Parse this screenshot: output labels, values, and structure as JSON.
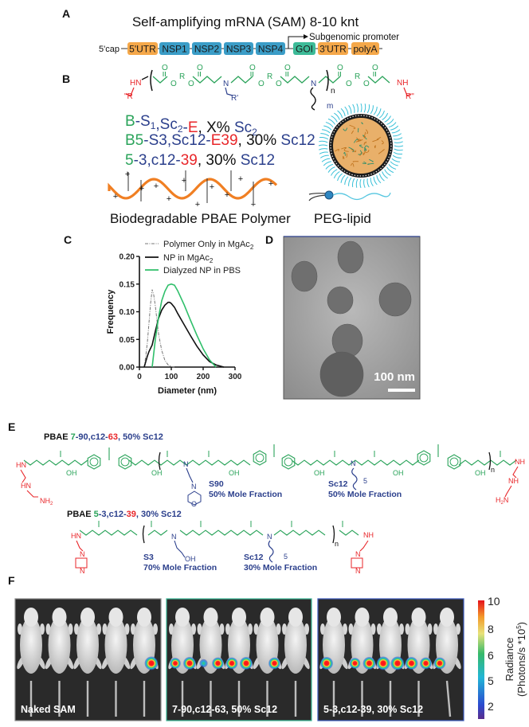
{
  "panel_labels": {
    "A": "A",
    "B": "B",
    "C": "C",
    "D": "D",
    "E": "E",
    "F": "F"
  },
  "panelA": {
    "title": "Self-amplifying mRNA (SAM) 8-10 knt",
    "cap": "5'cap",
    "promoter": "Subgenomic promoter",
    "segments": [
      {
        "label": "5'UTR",
        "color": "#f5a84a"
      },
      {
        "label": "NSP1",
        "color": "#3b9dc7"
      },
      {
        "label": "NSP2",
        "color": "#3b9dc7"
      },
      {
        "label": "NSP3",
        "color": "#3b9dc7"
      },
      {
        "label": "NSP4",
        "color": "#3b9dc7"
      },
      {
        "label": "GOI",
        "color": "#3dbb98"
      },
      {
        "label": "3'UTR",
        "color": "#f5a84a"
      },
      {
        "label": "polyA",
        "color": "#f5a84a"
      }
    ]
  },
  "panelB": {
    "atoms": {
      "hn": "HN",
      "nh": "NH",
      "n": "N",
      "o": "O",
      "r": "R",
      "r_prime": "R'",
      "r_left": "\"R",
      "r_right": "R\"",
      "n_sub": "n",
      "m_sub": "m"
    },
    "nomenclature": [
      [
        {
          "t": "B",
          "c": "#2aa35a"
        },
        {
          "t": "-",
          "c": "#2b3f8c"
        },
        {
          "t": "S",
          "c": "#2b3f8c"
        },
        {
          "t": "1",
          "c": "#2b3f8c",
          "sub": true
        },
        {
          "t": ",Sc",
          "c": "#2b3f8c"
        },
        {
          "t": "2",
          "c": "#2b3f8c",
          "sub": true
        },
        {
          "t": "-",
          "c": "#2b3f8c"
        },
        {
          "t": "E",
          "c": "#e8262a"
        },
        {
          "t": ", X% ",
          "c": "#111"
        },
        {
          "t": "Sc",
          "c": "#2b3f8c"
        },
        {
          "t": "2",
          "c": "#2b3f8c",
          "sub": true
        }
      ],
      [
        {
          "t": "B5",
          "c": "#2aa35a"
        },
        {
          "t": "-S3,Sc12-",
          "c": "#2b3f8c"
        },
        {
          "t": "E39",
          "c": "#e8262a"
        },
        {
          "t": ", 30% ",
          "c": "#111"
        },
        {
          "t": "Sc12",
          "c": "#2b3f8c"
        }
      ],
      [
        {
          "t": "5",
          "c": "#2aa35a"
        },
        {
          "t": "-3,c12-",
          "c": "#2b3f8c"
        },
        {
          "t": "39",
          "c": "#e8262a"
        },
        {
          "t": ", 30% ",
          "c": "#111"
        },
        {
          "t": "Sc12",
          "c": "#2b3f8c"
        }
      ]
    ],
    "polymer_label": "Biodegradable PBAE Polymer",
    "peg_label": "PEG-lipid",
    "charge_symbol": "+"
  },
  "panelC": {
    "chart_data": {
      "type": "line",
      "title": "",
      "xlabel": "Diameter (nm)",
      "ylabel": "Frequency",
      "xlim": [
        0,
        300
      ],
      "ylim": [
        0,
        0.2
      ],
      "xticks": [
        0,
        100,
        200,
        300
      ],
      "yticks": [
        "0.00",
        "0.05",
        "0.10",
        "0.15",
        "0.20"
      ],
      "legend_position": "top-right",
      "series": [
        {
          "name": "Polymer Only in MgAc",
          "name_sub": "2",
          "style": "dash-dot",
          "color": "#777777",
          "x": [
            15,
            20,
            25,
            30,
            35,
            40,
            45,
            50,
            55,
            60,
            70,
            80,
            90,
            100,
            110
          ],
          "y": [
            0,
            0.02,
            0.045,
            0.08,
            0.115,
            0.14,
            0.13,
            0.11,
            0.085,
            0.06,
            0.03,
            0.012,
            0.004,
            0.001,
            0
          ]
        },
        {
          "name": "NP in MgAc",
          "name_sub": "2",
          "style": "solid",
          "color": "#111111",
          "x": [
            15,
            20,
            25,
            30,
            40,
            50,
            60,
            70,
            80,
            90,
            95,
            100,
            110,
            120,
            140,
            160,
            180,
            200,
            220,
            240,
            265
          ],
          "y": [
            0,
            0.01,
            0.02,
            0.028,
            0.04,
            0.065,
            0.088,
            0.103,
            0.112,
            0.117,
            0.117,
            0.115,
            0.108,
            0.097,
            0.077,
            0.057,
            0.038,
            0.022,
            0.01,
            0.004,
            0
          ]
        },
        {
          "name": "Dialyzed NP in PBS",
          "name_sub": "",
          "style": "solid",
          "color": "#2fbf6a",
          "x": [
            40,
            50,
            60,
            70,
            80,
            90,
            100,
            110,
            120,
            140,
            160,
            180,
            200,
            220,
            240
          ],
          "y": [
            0,
            0.05,
            0.09,
            0.12,
            0.137,
            0.148,
            0.15,
            0.148,
            0.138,
            0.113,
            0.085,
            0.058,
            0.033,
            0.013,
            0
          ]
        }
      ]
    }
  },
  "panelD": {
    "scale_bar": "100 nm"
  },
  "panelE": {
    "atoms": {
      "hn": "HN",
      "nh": "NH",
      "nh2": "NH",
      "nh2_sub": "2",
      "h2n": "H",
      "h2n_sub": "2",
      "h2n_n": "N",
      "oh": "OH",
      "o": "O",
      "n": "N",
      "n_sub": "n",
      "five": "5"
    },
    "structure1": {
      "title": [
        {
          "t": "PBAE ",
          "c": "#111"
        },
        {
          "t": "7",
          "c": "#2aa35a"
        },
        {
          "t": "-90,c12-",
          "c": "#2b3f8c"
        },
        {
          "t": "63",
          "c": "#e8262a"
        },
        {
          "t": ", 50% Sc12",
          "c": "#2b3f8c"
        }
      ],
      "sub1_name": "S90",
      "sub1_fraction": "50% Mole Fraction",
      "sub2_name": "Sc12",
      "sub2_fraction": "50% Mole Fraction"
    },
    "structure2": {
      "title": [
        {
          "t": "PBAE ",
          "c": "#111"
        },
        {
          "t": "5",
          "c": "#2aa35a"
        },
        {
          "t": "-3,c12-",
          "c": "#2b3f8c"
        },
        {
          "t": "39",
          "c": "#e8262a"
        },
        {
          "t": ", 30% Sc12",
          "c": "#2b3f8c"
        }
      ],
      "sub1_name": "S3",
      "sub1_fraction": "70% Mole Fraction",
      "sub2_name": "Sc12",
      "sub2_fraction": "30% Mole Fraction"
    }
  },
  "panelF": {
    "groups": [
      {
        "label": "Naked SAM",
        "border": "#888888",
        "spots": [
          {
            "mouse": 5,
            "side": "right",
            "radiance": 10
          }
        ]
      },
      {
        "label": "7-90,c12-63, 50% Sc12",
        "border": "#3dbb98",
        "spots": [
          {
            "mouse": 1,
            "side": "left",
            "radiance": 7
          },
          {
            "mouse": 1,
            "side": "right",
            "radiance": 9
          },
          {
            "mouse": 2,
            "side": "left",
            "radiance": 4
          },
          {
            "mouse": 2,
            "side": "right",
            "radiance": 8
          },
          {
            "mouse": 3,
            "side": "left",
            "radiance": 8
          },
          {
            "mouse": 3,
            "side": "right",
            "radiance": 9
          },
          {
            "mouse": 4,
            "side": "right",
            "radiance": 8
          }
        ]
      },
      {
        "label": "5-3,c12-39, 30% Sc12",
        "border": "#3b5bbf",
        "spots": [
          {
            "mouse": 1,
            "side": "left",
            "radiance": 9
          },
          {
            "mouse": 2,
            "side": "left",
            "radiance": 7
          },
          {
            "mouse": 2,
            "side": "right",
            "radiance": 9
          },
          {
            "mouse": 3,
            "side": "left",
            "radiance": 10
          },
          {
            "mouse": 3,
            "side": "right",
            "radiance": 10
          },
          {
            "mouse": 4,
            "side": "left",
            "radiance": 9
          },
          {
            "mouse": 4,
            "side": "right",
            "radiance": 8
          },
          {
            "mouse": 5,
            "side": "left",
            "radiance": 8
          }
        ]
      }
    ],
    "colorbar": {
      "ticks": [
        "10",
        "8",
        "6",
        "5",
        "2"
      ],
      "label": "Radiance",
      "unit": "(Photons/s *10",
      "unit_sup": "5",
      "unit_end": ")"
    }
  },
  "colors": {
    "green": "#2aa35a",
    "blue": "#2b3f8c",
    "red": "#e8262a",
    "orange": "#f07f23",
    "cyan": "#38c0d8"
  }
}
